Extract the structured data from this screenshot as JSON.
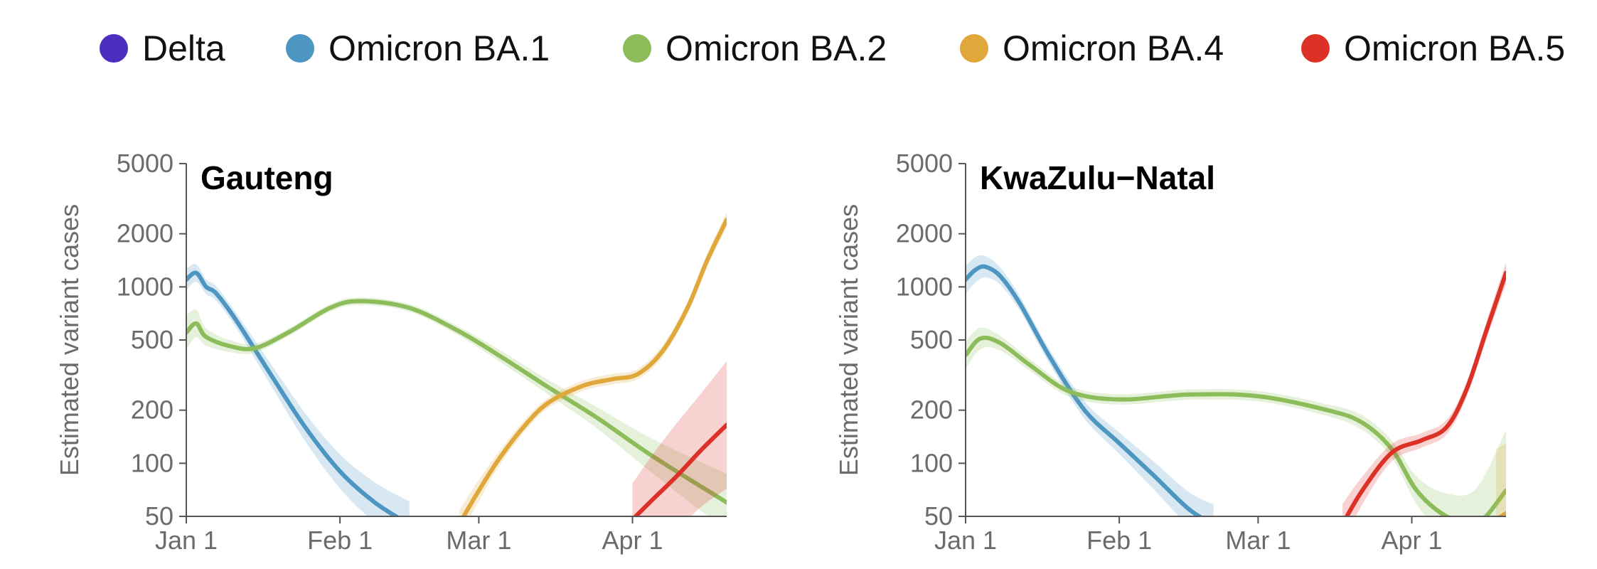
{
  "legend": [
    {
      "name": "Delta",
      "color": "#4a2fbf"
    },
    {
      "name": "Omicron BA.1",
      "color": "#4d96c2"
    },
    {
      "name": "Omicron BA.2",
      "color": "#8cbd5a"
    },
    {
      "name": "Omicron BA.4",
      "color": "#e0a83a"
    },
    {
      "name": "Omicron BA.5",
      "color": "#dc3127"
    }
  ],
  "chart_data": [
    {
      "type": "line",
      "title": "Gauteng",
      "ylabel": "Estimated variant cases",
      "xlabel": "",
      "yscale": "log",
      "ylim": [
        50,
        5000
      ],
      "yticks": [
        50,
        100,
        200,
        500,
        1000,
        2000,
        5000
      ],
      "ytick_labels": [
        "50",
        "100",
        "200",
        "500",
        "1000",
        "2000",
        "5000"
      ],
      "xlim": [
        "2022-01-01",
        "2022-04-20"
      ],
      "xticks": [
        "2022-01-01",
        "2022-02-01",
        "2022-03-01",
        "2022-04-01"
      ],
      "xtick_labels": [
        "Jan 1",
        "Feb 1",
        "Mar 1",
        "Apr 1"
      ],
      "series": [
        {
          "name": "Omicron BA.1",
          "color": "#4d96c2",
          "x": [
            "2022-01-01",
            "2022-01-03",
            "2022-01-05",
            "2022-01-07",
            "2022-01-11",
            "2022-01-18",
            "2022-01-25",
            "2022-02-01",
            "2022-02-08",
            "2022-02-15"
          ],
          "y": [
            1100,
            1200,
            1000,
            920,
            650,
            320,
            160,
            90,
            60,
            45
          ],
          "band_ratio": [
            1.15,
            1.12,
            1.1,
            1.1,
            1.1,
            1.15,
            1.2,
            1.25,
            1.3,
            1.35
          ]
        },
        {
          "name": "Omicron BA.2",
          "color": "#8cbd5a",
          "x": [
            "2022-01-01",
            "2022-01-03",
            "2022-01-05",
            "2022-01-10",
            "2022-01-15",
            "2022-01-22",
            "2022-01-30",
            "2022-02-05",
            "2022-02-15",
            "2022-02-25",
            "2022-03-05",
            "2022-03-15",
            "2022-03-25",
            "2022-04-05",
            "2022-04-20"
          ],
          "y": [
            550,
            620,
            520,
            460,
            450,
            560,
            760,
            830,
            760,
            560,
            410,
            270,
            180,
            110,
            60
          ],
          "band_ratio": [
            1.25,
            1.2,
            1.12,
            1.08,
            1.06,
            1.05,
            1.05,
            1.05,
            1.05,
            1.06,
            1.08,
            1.1,
            1.15,
            1.25,
            1.45
          ]
        },
        {
          "name": "Omicron BA.4",
          "color": "#e0a83a",
          "x": [
            "2022-02-25",
            "2022-03-01",
            "2022-03-05",
            "2022-03-10",
            "2022-03-15",
            "2022-03-22",
            "2022-03-28",
            "2022-04-02",
            "2022-04-07",
            "2022-04-12",
            "2022-04-16",
            "2022-04-20"
          ],
          "y": [
            45,
            70,
            105,
            160,
            220,
            275,
            300,
            320,
            430,
            750,
            1400,
            2400
          ],
          "band_ratio": [
            1.2,
            1.15,
            1.1,
            1.08,
            1.07,
            1.07,
            1.07,
            1.07,
            1.08,
            1.08,
            1.09,
            1.1
          ]
        },
        {
          "name": "Omicron BA.5",
          "color": "#dc3127",
          "x": [
            "2022-04-01",
            "2022-04-05",
            "2022-04-10",
            "2022-04-15",
            "2022-04-20"
          ],
          "y": [
            48,
            62,
            85,
            120,
            165
          ],
          "band_ratio": [
            1.6,
            1.8,
            2.0,
            2.1,
            2.3
          ]
        }
      ]
    },
    {
      "type": "line",
      "title": "KwaZulu−Natal",
      "ylabel": "Estimated variant cases",
      "xlabel": "",
      "yscale": "log",
      "ylim": [
        50,
        5000
      ],
      "yticks": [
        50,
        100,
        200,
        500,
        1000,
        2000,
        5000
      ],
      "ytick_labels": [
        "50",
        "100",
        "200",
        "500",
        "1000",
        "2000",
        "5000"
      ],
      "xlim": [
        "2022-01-01",
        "2022-04-20"
      ],
      "xticks": [
        "2022-01-01",
        "2022-02-01",
        "2022-03-01",
        "2022-04-01"
      ],
      "xtick_labels": [
        "Jan 1",
        "Feb 1",
        "Mar 1",
        "Apr 1"
      ],
      "series": [
        {
          "name": "Omicron BA.1",
          "color": "#4d96c2",
          "x": [
            "2022-01-01",
            "2022-01-03",
            "2022-01-05",
            "2022-01-08",
            "2022-01-12",
            "2022-01-18",
            "2022-01-25",
            "2022-02-01",
            "2022-02-08",
            "2022-02-15",
            "2022-02-20"
          ],
          "y": [
            1100,
            1250,
            1300,
            1150,
            800,
            400,
            200,
            130,
            85,
            55,
            45
          ],
          "band_ratio": [
            1.2,
            1.18,
            1.15,
            1.12,
            1.1,
            1.1,
            1.12,
            1.15,
            1.2,
            1.25,
            1.3
          ]
        },
        {
          "name": "Omicron BA.2",
          "color": "#8cbd5a",
          "x": [
            "2022-01-01",
            "2022-01-04",
            "2022-01-08",
            "2022-01-14",
            "2022-01-22",
            "2022-02-01",
            "2022-02-15",
            "2022-03-01",
            "2022-03-15",
            "2022-03-22",
            "2022-03-28",
            "2022-04-02",
            "2022-04-08",
            "2022-04-14",
            "2022-04-20"
          ],
          "y": [
            410,
            510,
            480,
            360,
            255,
            230,
            245,
            240,
            200,
            170,
            120,
            70,
            50,
            45,
            70
          ],
          "band_ratio": [
            1.2,
            1.15,
            1.1,
            1.08,
            1.07,
            1.07,
            1.07,
            1.07,
            1.08,
            1.1,
            1.12,
            1.2,
            1.35,
            1.6,
            2.2
          ]
        },
        {
          "name": "Omicron BA.4",
          "color": "#e0a83a",
          "x": [
            "2022-04-18",
            "2022-04-20"
          ],
          "y": [
            48,
            52
          ],
          "band_ratio": [
            2.5,
            2.5
          ]
        },
        {
          "name": "Omicron BA.5",
          "color": "#dc3127",
          "x": [
            "2022-03-18",
            "2022-03-22",
            "2022-03-28",
            "2022-04-03",
            "2022-04-08",
            "2022-04-12",
            "2022-04-16",
            "2022-04-20"
          ],
          "y": [
            45,
            70,
            115,
            135,
            160,
            260,
            560,
            1200
          ],
          "band_ratio": [
            1.3,
            1.2,
            1.12,
            1.1,
            1.1,
            1.1,
            1.12,
            1.15
          ]
        }
      ]
    }
  ]
}
